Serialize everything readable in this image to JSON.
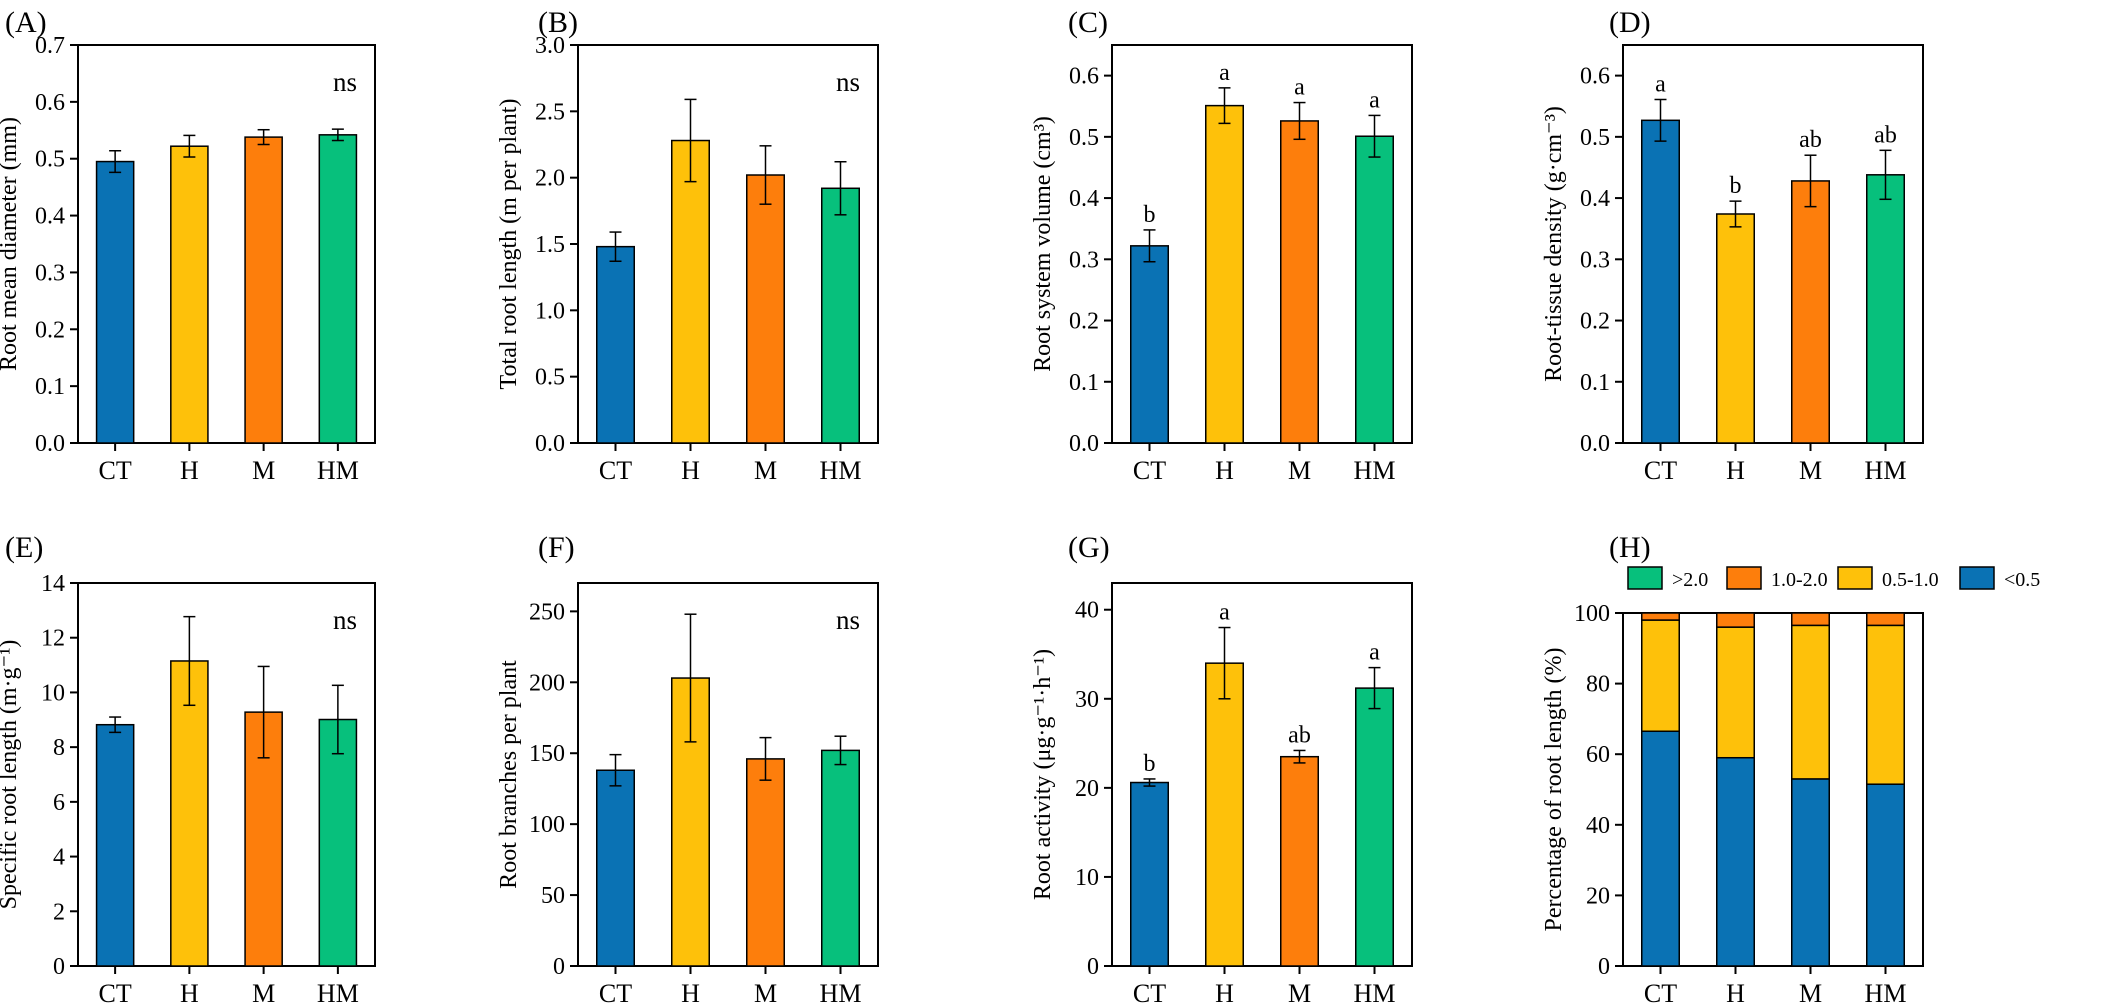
{
  "colors": {
    "CT": "#0a72b4",
    "H": "#fec10a",
    "M": "#fd7e0c",
    "HM": "#07c07c",
    ">2.0": "#07c07c",
    "1.0-2.0": "#fd7e0c",
    "0.5-1.0": "#fec10a",
    "<0.5": "#0a72b4"
  },
  "chart_data": [
    {
      "id": "A",
      "panel_label": "(A)",
      "type": "bar",
      "categories": [
        "CT",
        "H",
        "M",
        "HM"
      ],
      "values": [
        0.495,
        0.522,
        0.538,
        0.542
      ],
      "errors": [
        0.019,
        0.019,
        0.013,
        0.01
      ],
      "ylabel": "Root mean diameter (mm)",
      "ylim": [
        0,
        0.7
      ],
      "yticks": [
        0.0,
        0.1,
        0.2,
        0.3,
        0.4,
        0.5,
        0.6,
        0.7
      ],
      "tick_decimals": 1,
      "significance": [
        "",
        "",
        "",
        ""
      ],
      "annotation": "ns"
    },
    {
      "id": "B",
      "panel_label": "(B)",
      "type": "bar",
      "categories": [
        "CT",
        "H",
        "M",
        "HM"
      ],
      "values": [
        1.48,
        2.28,
        2.02,
        1.92
      ],
      "errors": [
        0.11,
        0.31,
        0.22,
        0.2
      ],
      "ylabel": "Total root length (m per plant)",
      "ylim": [
        0,
        3.0
      ],
      "yticks": [
        0.0,
        0.5,
        1.0,
        1.5,
        2.0,
        2.5,
        3.0
      ],
      "tick_decimals": 1,
      "significance": [
        "",
        "",
        "",
        ""
      ],
      "annotation": "ns"
    },
    {
      "id": "C",
      "panel_label": "(C)",
      "type": "bar",
      "categories": [
        "CT",
        "H",
        "M",
        "HM"
      ],
      "values": [
        0.322,
        0.551,
        0.526,
        0.501
      ],
      "errors": [
        0.026,
        0.029,
        0.03,
        0.034
      ],
      "ylabel": "Root system volume (cm³)",
      "ylim": [
        0,
        0.65
      ],
      "yticks": [
        0.0,
        0.1,
        0.2,
        0.3,
        0.4,
        0.5,
        0.6
      ],
      "tick_decimals": 1,
      "significance": [
        "b",
        "a",
        "a",
        "a"
      ],
      "annotation": ""
    },
    {
      "id": "D",
      "panel_label": "(D)",
      "type": "bar",
      "categories": [
        "CT",
        "H",
        "M",
        "HM"
      ],
      "values": [
        0.527,
        0.374,
        0.428,
        0.438
      ],
      "errors": [
        0.034,
        0.021,
        0.042,
        0.04
      ],
      "ylabel": "Root-tissue density (g·cm⁻³)",
      "ylim": [
        0,
        0.65
      ],
      "yticks": [
        0.0,
        0.1,
        0.2,
        0.3,
        0.4,
        0.5,
        0.6
      ],
      "tick_decimals": 1,
      "significance": [
        "a",
        "b",
        "ab",
        "ab"
      ],
      "annotation": ""
    },
    {
      "id": "E",
      "panel_label": "(E)",
      "type": "bar",
      "categories": [
        "CT",
        "H",
        "M",
        "HM"
      ],
      "values": [
        8.82,
        11.15,
        9.28,
        9.01
      ],
      "errors": [
        0.28,
        1.62,
        1.67,
        1.25
      ],
      "ylabel": "Specific root length (m·g⁻¹)",
      "ylim": [
        0,
        14
      ],
      "yticks": [
        0,
        2,
        4,
        6,
        8,
        10,
        12,
        14
      ],
      "tick_decimals": 0,
      "significance": [
        "",
        "",
        "",
        ""
      ],
      "annotation": "ns"
    },
    {
      "id": "F",
      "panel_label": "(F)",
      "type": "bar",
      "categories": [
        "CT",
        "H",
        "M",
        "HM"
      ],
      "values": [
        138,
        203,
        146,
        152
      ],
      "errors": [
        11,
        45,
        15,
        10
      ],
      "ylabel": "Root branches per plant",
      "ylim": [
        0,
        270
      ],
      "yticks": [
        0,
        50,
        100,
        150,
        200,
        250
      ],
      "tick_decimals": 0,
      "significance": [
        "",
        "",
        "",
        ""
      ],
      "annotation": "ns"
    },
    {
      "id": "G",
      "panel_label": "(G)",
      "type": "bar",
      "categories": [
        "CT",
        "H",
        "M",
        "HM"
      ],
      "values": [
        20.6,
        34.0,
        23.5,
        31.2
      ],
      "errors": [
        0.4,
        4.0,
        0.7,
        2.3
      ],
      "ylabel": "Root activity (μg·g⁻¹·h⁻¹)",
      "ylim": [
        0,
        43
      ],
      "yticks": [
        0,
        10,
        20,
        30,
        40
      ],
      "tick_decimals": 0,
      "significance": [
        "b",
        "a",
        "ab",
        "a"
      ],
      "annotation": ""
    },
    {
      "id": "H",
      "panel_label": "(H)",
      "type": "stacked-bar",
      "categories": [
        "CT",
        "H",
        "M",
        "HM"
      ],
      "series": [
        {
          "name": "<0.5",
          "values": [
            66.5,
            59.0,
            53.0,
            51.5
          ]
        },
        {
          "name": "0.5-1.0",
          "values": [
            31.5,
            37.0,
            43.5,
            45.0
          ]
        },
        {
          "name": "1.0-2.0",
          "values": [
            2.0,
            4.0,
            3.5,
            3.5
          ]
        },
        {
          "name": ">2.0",
          "values": [
            0.0,
            0.0,
            0.0,
            0.0
          ]
        }
      ],
      "legend": [
        ">2.0",
        "1.0-2.0",
        "0.5-1.0",
        "<0.5"
      ],
      "ylabel": "Percentage of root length (%)",
      "ylim": [
        0,
        100
      ],
      "yticks": [
        0,
        20,
        40,
        60,
        80,
        100
      ],
      "tick_decimals": 0,
      "annotation": ""
    }
  ]
}
